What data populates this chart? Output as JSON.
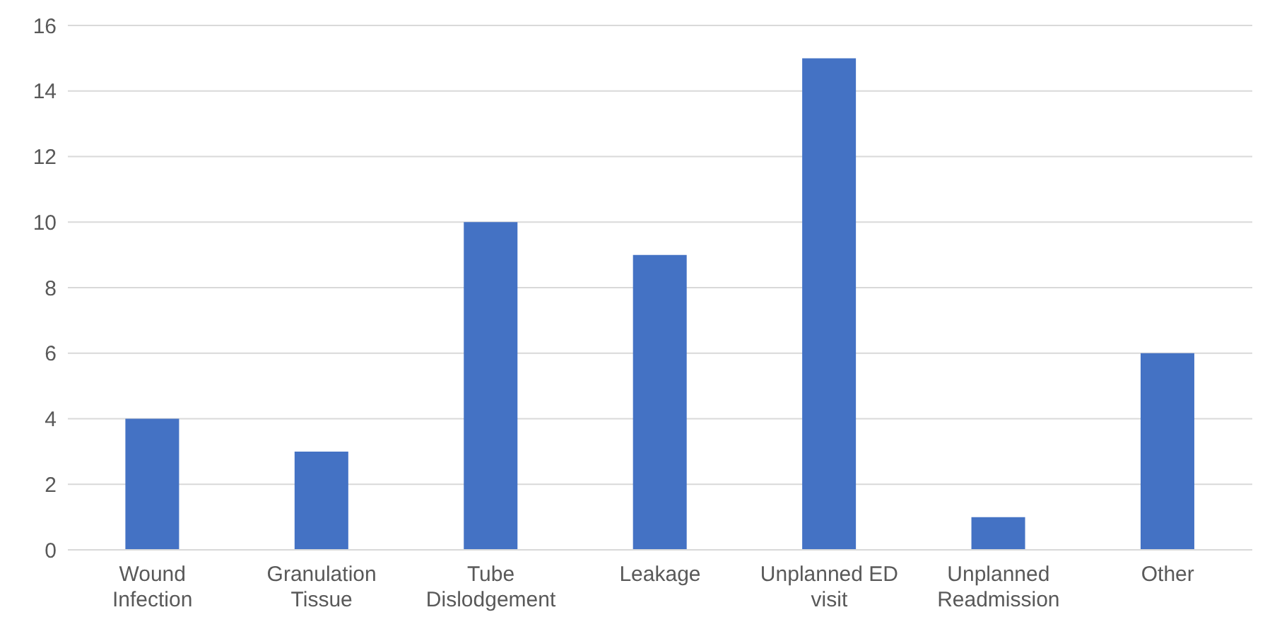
{
  "chart_data": {
    "type": "bar",
    "categories": [
      "Wound Infection",
      "Granulation Tissue",
      "Tube Dislodgement",
      "Leakage",
      "Unplanned ED visit",
      "Unplanned Readmission",
      "Other"
    ],
    "values": [
      4,
      3,
      10,
      9,
      15,
      1,
      6
    ],
    "color": "#4472c4",
    "ylim": [
      0,
      16
    ],
    "yticks": [
      0,
      2,
      4,
      6,
      8,
      10,
      12,
      14,
      16
    ],
    "grid": "y"
  }
}
